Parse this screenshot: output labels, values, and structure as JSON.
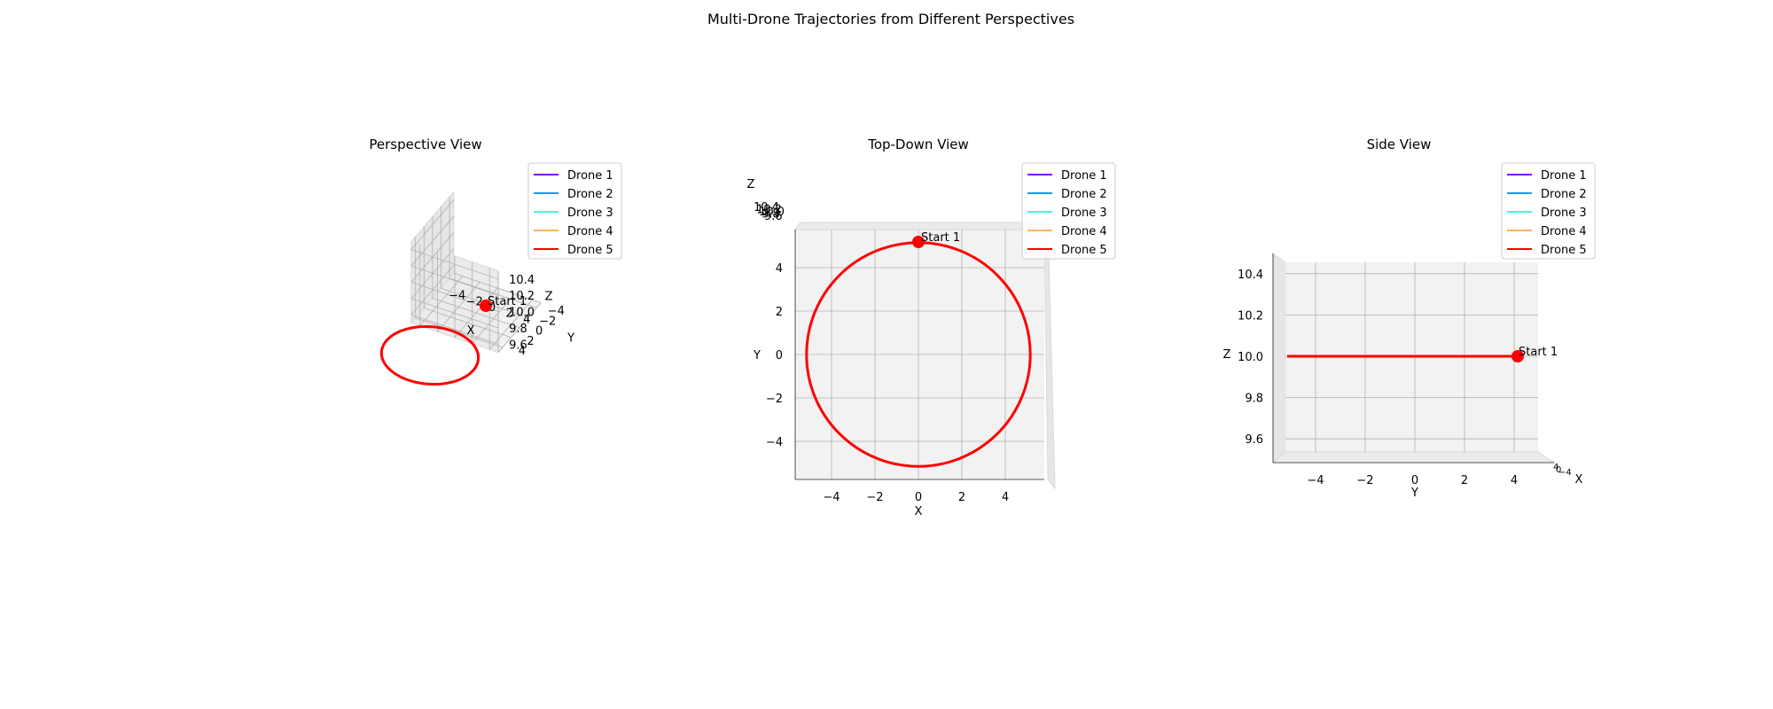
{
  "figure": {
    "suptitle": "Multi-Drone Trajectories from Different Perspectives"
  },
  "chart_data": [
    {
      "type": "line",
      "subtype": "3d",
      "view": "perspective",
      "title": "Perspective View",
      "xlabel": "X",
      "ylabel": "Y",
      "zlabel": "Z",
      "xlim": [
        -5,
        5
      ],
      "ylim": [
        -5,
        5
      ],
      "zlim": [
        9.5,
        10.5
      ],
      "xticks": [
        -4,
        -2,
        0,
        2,
        4
      ],
      "yticks": [
        -4,
        -2,
        0,
        2,
        4
      ],
      "zticks": [
        9.6,
        9.8,
        10.0,
        10.2,
        10.4
      ],
      "zticklabels": [
        "9.6",
        "9.8",
        "10.0",
        "10.2",
        "10.4"
      ],
      "legend": {
        "placement": "upper right",
        "entries": [
          {
            "name": "Drone 1",
            "color": "#8000ff"
          },
          {
            "name": "Drone 2",
            "color": "#1996f3"
          },
          {
            "name": "Drone 3",
            "color": "#4df3ce"
          },
          {
            "name": "Drone 4",
            "color": "#ffb360"
          },
          {
            "name": "Drone 5",
            "color": "#ff0000"
          }
        ]
      },
      "trajectory": {
        "shape": "circle",
        "center": [
          0,
          0,
          10.0
        ],
        "radius": 5,
        "visible_color": "#ff0000"
      },
      "start_marker": {
        "x": 0,
        "y": 5,
        "z": 10.0,
        "label": "Start 1",
        "color": "#ff0000"
      },
      "grid": true
    },
    {
      "type": "line",
      "subtype": "3d",
      "view": "top-down",
      "title": "Top-Down View",
      "xlabel": "X",
      "ylabel": "Y",
      "zlabel": "Z",
      "xlim": [
        -5.5,
        5.5
      ],
      "ylim": [
        -5.5,
        5.5
      ],
      "xticks": [
        -4,
        -2,
        0,
        2,
        4
      ],
      "yticks": [
        -4,
        -2,
        0,
        2,
        4
      ],
      "zticklabels": [
        "10.4",
        "10.2",
        "10.0",
        "9.8",
        "9.6"
      ],
      "legend": {
        "placement": "upper right",
        "entries": [
          {
            "name": "Drone 1",
            "color": "#8000ff"
          },
          {
            "name": "Drone 2",
            "color": "#1996f3"
          },
          {
            "name": "Drone 3",
            "color": "#4df3ce"
          },
          {
            "name": "Drone 4",
            "color": "#ffb360"
          },
          {
            "name": "Drone 5",
            "color": "#ff0000"
          }
        ]
      },
      "trajectory": {
        "shape": "circle",
        "center": [
          0,
          0
        ],
        "radius": 5.1,
        "visible_color": "#ff0000"
      },
      "start_marker": {
        "x": 0,
        "y": 5.1,
        "label": "Start 1",
        "color": "#ff0000"
      },
      "grid": true
    },
    {
      "type": "line",
      "subtype": "3d",
      "view": "side",
      "title": "Side View",
      "xlabel": "X",
      "ylabel": "Y",
      "zlabel": "Z",
      "xlim": [
        -5.5,
        5
      ],
      "zlim": [
        9.55,
        10.45
      ],
      "xticks": [
        -4,
        -2,
        0,
        2,
        4
      ],
      "zticks": [
        9.6,
        9.8,
        10.0,
        10.2,
        10.4
      ],
      "zticklabels": [
        "9.6",
        "9.8",
        "10.0",
        "10.2",
        "10.4"
      ],
      "legend": {
        "placement": "upper right",
        "entries": [
          {
            "name": "Drone 1",
            "color": "#8000ff"
          },
          {
            "name": "Drone 2",
            "color": "#1996f3"
          },
          {
            "name": "Drone 3",
            "color": "#4df3ce"
          },
          {
            "name": "Drone 4",
            "color": "#ffb360"
          },
          {
            "name": "Drone 5",
            "color": "#ff0000"
          }
        ]
      },
      "trajectory": {
        "shape": "line",
        "from": [
          -5,
          10.0
        ],
        "to": [
          5,
          10.0
        ],
        "visible_color": "#ff0000"
      },
      "start_marker": {
        "x": 5,
        "z": 10.0,
        "label": "Start 1",
        "color": "#ff0000"
      },
      "grid": true
    }
  ]
}
